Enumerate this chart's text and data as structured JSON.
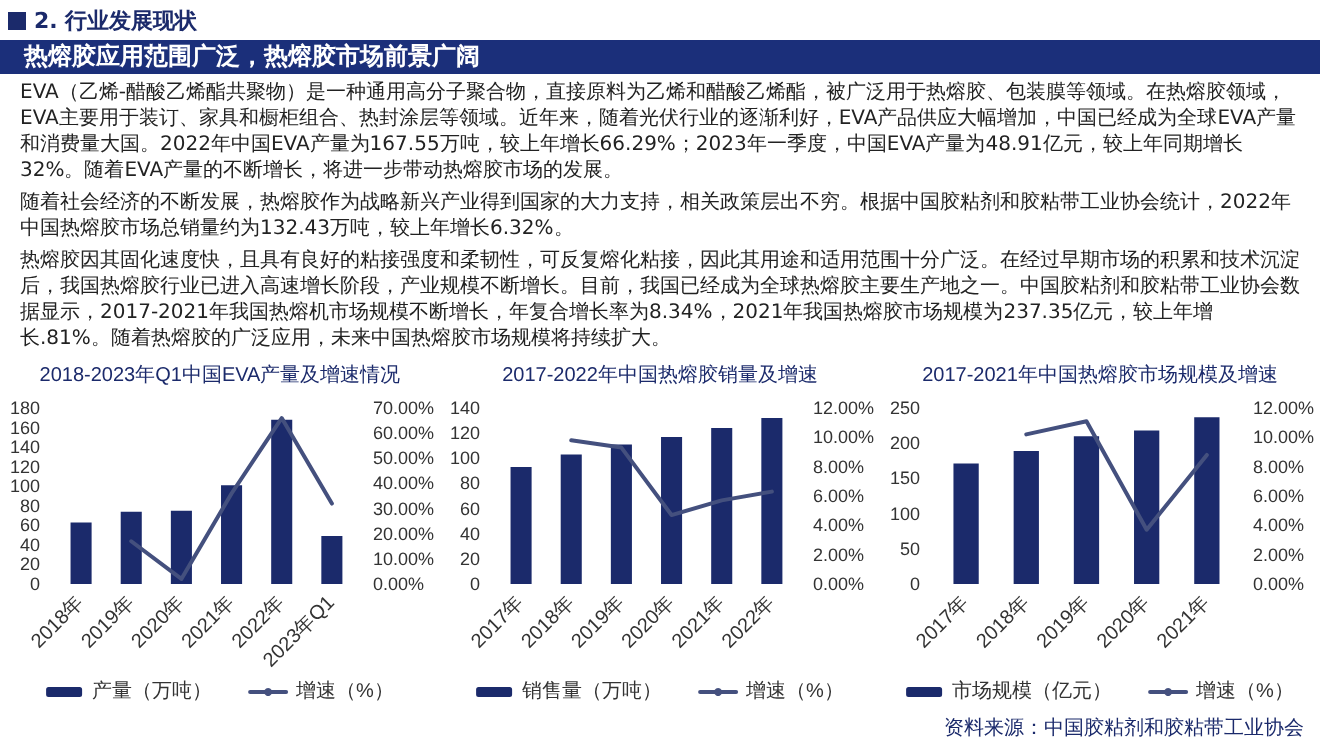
{
  "chart_data": [
    {
      "type": "other",
      "title": "热熔胶应用范围广泛，热熔胶市场前景广阔",
      "subtitle": "2. 行业发展现状",
      "annotations": [
        "EVA（乙烯-醋酸乙烯酯共聚物）是一种通用高分子聚合物，直接原料为乙烯和醋酸乙烯酯，被广泛用于热熔胶、包装膜等领域。在热熔胶领域，EVA主要用于装订、家具和橱柜组合、热封涂层等领域。近年来，随着光伏行业的逐渐利好，EVA产品供应大幅增加，中国已经成为全球EVA产量和消费量大国。2022年中国EVA产量为167.55万吨，较上年增长66.29%；2023年一季度，中国EVA产量为48.91亿元，较上年同期增长32%。随着EVA产量的不断增长，将进一步带动热熔胶市场的发展。",
        "随着社会经济的不断发展，热熔胶作为战略新兴产业得到国家的大力支持，相关政策层出不穷。根据中国胶粘剂和胶粘带工业协会统计，2022年中国热熔胶市场总销量约为132.43万吨，较上年增长6.32%。",
        "热熔胶因其固化速度快，且具有良好的粘接强度和柔韧性，可反复熔化粘接，因此其用途和适用范围十分广泛。在经过早期市场的积累和技术沉淀后，我国热熔胶行业已进入高速增长阶段，产业规模不断增长。目前，我国已经成为全球热熔胶主要生产地之一。中国胶粘剂和胶粘带工业协会数据显示，2017-2021年我国热熔机市场规模不断增长，年复合增长率为8.34%，2021年我国热熔胶市场规模为237.35亿元，较上年增长.81%。随着热熔胶的广泛应用，未来中国热熔胶市场规模将持续扩大。"
      ]
    },
    {
      "type": "bar",
      "title": "2018-2023年Q1中国EVA产量及增速情况",
      "categories": [
        "2018年",
        "2019年",
        "2020年",
        "2021年",
        "2022年",
        "2023年Q1"
      ],
      "series": [
        {
          "name": "产量（万吨）",
          "type": "bar",
          "color": "#1b2a6b",
          "values": [
            63,
            74,
            75,
            101,
            168,
            49
          ]
        },
        {
          "name": "增速（%）",
          "type": "line",
          "axis": "y2",
          "color": "#44507e",
          "values": [
            null,
            17,
            2,
            36,
            66,
            32
          ]
        }
      ],
      "ylim": [
        0,
        180
      ],
      "yticks": [
        0,
        20,
        40,
        60,
        80,
        100,
        120,
        140,
        160,
        180
      ],
      "y2lim": [
        0,
        70
      ],
      "y2ticks": [
        {
          "value": 0,
          "label": "0.00%"
        },
        {
          "value": 10,
          "label": "10.00%"
        },
        {
          "value": 20,
          "label": "20.00%"
        },
        {
          "value": 30,
          "label": "30.00%"
        },
        {
          "value": 40,
          "label": "40.00%"
        },
        {
          "value": 50,
          "label": "50.00%"
        },
        {
          "value": 60,
          "label": "60.00%"
        },
        {
          "value": 70,
          "label": "70.00%"
        }
      ],
      "legend": "bottom",
      "marker": "none"
    },
    {
      "type": "bar",
      "title": "2017-2022年中国热熔胶销量及增速",
      "categories": [
        "2017年",
        "2018年",
        "2019年",
        "2020年",
        "2021年",
        "2022年"
      ],
      "series": [
        {
          "name": "销售量（万吨）",
          "type": "bar",
          "color": "#1b2a6b",
          "values": [
            93,
            103,
            111,
            117,
            124,
            132
          ]
        },
        {
          "name": "增速（%）",
          "type": "line",
          "axis": "y2",
          "color": "#44507e",
          "values": [
            null,
            9.8,
            9.3,
            4.7,
            5.7,
            6.3
          ]
        }
      ],
      "ylim": [
        0,
        140
      ],
      "yticks": [
        0,
        20,
        40,
        60,
        80,
        100,
        120,
        140
      ],
      "y2lim": [
        0,
        12
      ],
      "y2ticks": [
        {
          "value": 0,
          "label": "0.00%"
        },
        {
          "value": 2,
          "label": "2.00%"
        },
        {
          "value": 4,
          "label": "4.00%"
        },
        {
          "value": 6,
          "label": "6.00%"
        },
        {
          "value": 8,
          "label": "8.00%"
        },
        {
          "value": 10,
          "label": "10.00%"
        },
        {
          "value": 12,
          "label": "12.00%"
        }
      ],
      "legend": "bottom",
      "marker": "none"
    },
    {
      "type": "bar",
      "title": "2017-2021年中国热熔胶市场规模及增速",
      "categories": [
        "2017年",
        "2018年",
        "2019年",
        "2020年",
        "2021年"
      ],
      "series": [
        {
          "name": "市场规模（亿元）",
          "type": "bar",
          "color": "#1b2a6b",
          "values": [
            171,
            189,
            210,
            218,
            237
          ]
        },
        {
          "name": "增速（%）",
          "type": "line",
          "axis": "y2",
          "color": "#44507e",
          "values": [
            null,
            10.2,
            11.1,
            3.7,
            8.8
          ]
        }
      ],
      "ylim": [
        0,
        250
      ],
      "yticks": [
        0,
        50,
        100,
        150,
        200,
        250
      ],
      "y2lim": [
        0,
        12
      ],
      "y2ticks": [
        {
          "value": 0,
          "label": "0.00%"
        },
        {
          "value": 2,
          "label": "2.00%"
        },
        {
          "value": 4,
          "label": "4.00%"
        },
        {
          "value": 6,
          "label": "6.00%"
        },
        {
          "value": 8,
          "label": "8.00%"
        },
        {
          "value": 10,
          "label": "10.00%"
        },
        {
          "value": 12,
          "label": "12.00%"
        }
      ],
      "legend": "bottom",
      "marker": "none",
      "annotations": [
        "资料来源：中国胶粘剂和胶粘带工业协会"
      ]
    }
  ]
}
